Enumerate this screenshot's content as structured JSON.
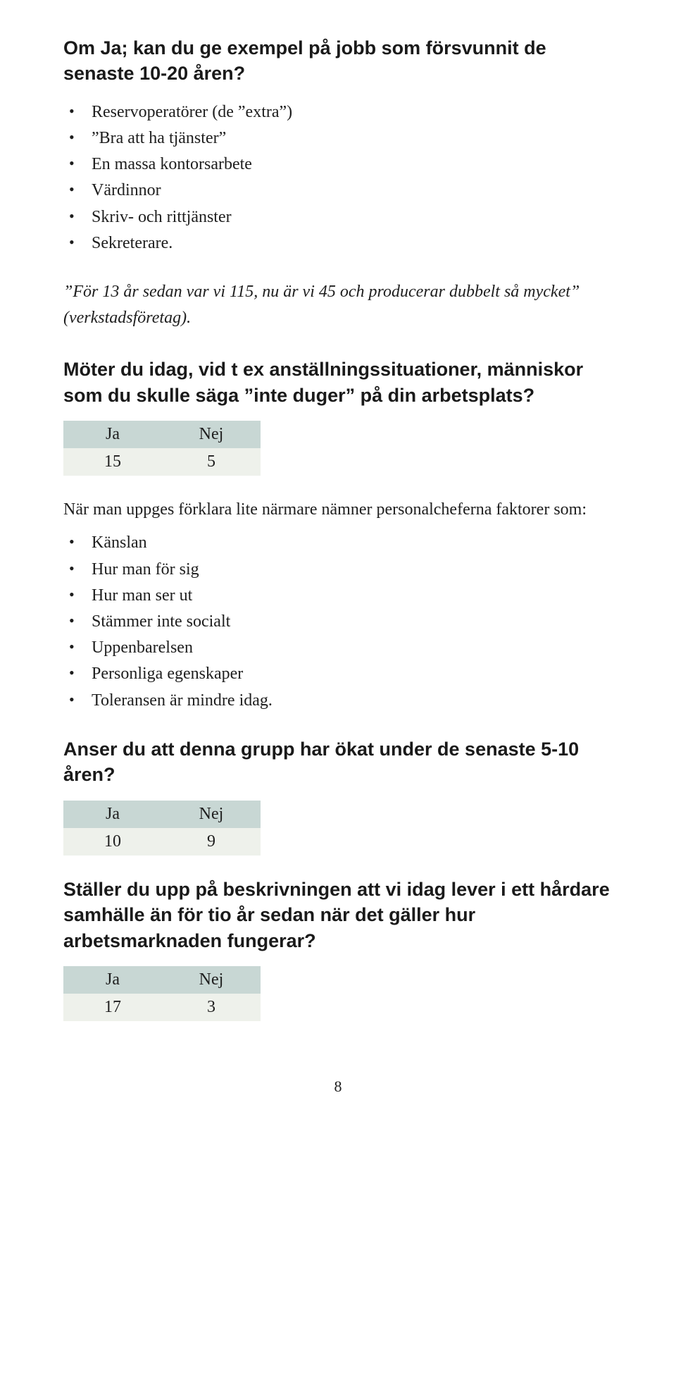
{
  "section1": {
    "heading": "Om Ja; kan du ge exempel på jobb som försvunnit de senaste 10-20 åren?",
    "bullets": [
      "Reservoperatörer (de ”extra”)",
      "”Bra att ha tjänster”",
      "En massa kontorsarbete",
      "Värdinnor",
      "Skriv- och rittjänster",
      "Sekreterare."
    ],
    "quote": "”För 13 år sedan var vi 115, nu är vi 45 och producerar dubbelt så mycket” (verkstadsföretag)."
  },
  "section2": {
    "heading": "Möter du idag, vid t ex anställningssituationer, människor som du skulle säga ”inte duger” på din arbetsplats?",
    "table": {
      "ja": "15",
      "nej": "5"
    },
    "lead": "När man uppges förklara lite närmare nämner personalcheferna faktorer som:",
    "bullets": [
      "Känslan",
      "Hur man för sig",
      "Hur man ser ut",
      "Stämmer inte socialt",
      "Uppenbarelsen",
      "Personliga egenskaper",
      "Toleransen är mindre idag."
    ]
  },
  "section3": {
    "heading": "Anser du att denna grupp har ökat under de senaste 5-10 åren?",
    "table": {
      "ja": "10",
      "nej": "9"
    }
  },
  "section4": {
    "heading": "Ställer du upp på beskrivningen att vi idag lever i ett hårdare samhälle än för tio år sedan när det gäller hur arbetsmarknaden fungerar?",
    "table": {
      "ja": "17",
      "nej": "3"
    }
  },
  "labels": {
    "ja": "Ja",
    "nej": "Nej"
  },
  "page_number": "8",
  "colors": {
    "header_bg": "#c8d7d4",
    "row_bg": "#eef1eb",
    "text": "#1e1e1e"
  }
}
